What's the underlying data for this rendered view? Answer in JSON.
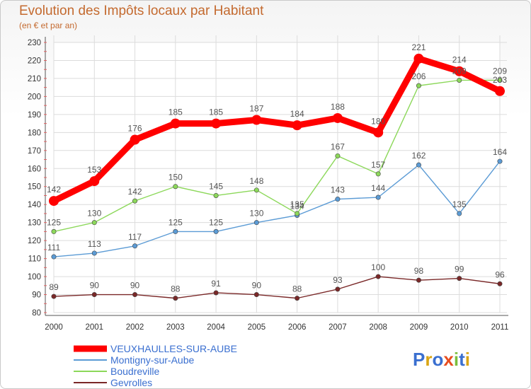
{
  "header": {
    "title": "Evolution des Impôts locaux par Habitant",
    "subtitle": "(en € et par an)"
  },
  "brand": {
    "logo_text": "Proxiti"
  },
  "chart_data": {
    "type": "line",
    "x": [
      "2000",
      "2001",
      "2002",
      "2003",
      "2004",
      "2005",
      "2006",
      "2007",
      "2008",
      "2009",
      "2010",
      "2011"
    ],
    "ylim": [
      80,
      230
    ],
    "yticks": [
      80,
      90,
      100,
      110,
      120,
      130,
      140,
      150,
      160,
      170,
      180,
      190,
      200,
      210,
      220,
      230
    ],
    "grid": true,
    "legend_position": "bottom-left",
    "series": [
      {
        "name": "VEUXHAULLES-SUR-AUBE",
        "color": "#ff0000",
        "values": [
          142,
          153,
          176,
          185,
          185,
          187,
          184,
          188,
          180,
          221,
          214,
          203
        ]
      },
      {
        "name": "Montigny-sur-Aube",
        "color": "#5b9bd5",
        "values": [
          111,
          113,
          117,
          125,
          125,
          130,
          134,
          143,
          144,
          162,
          135,
          164
        ]
      },
      {
        "name": "Boudreville",
        "color": "#8cd85a",
        "values": [
          125,
          130,
          142,
          150,
          145,
          148,
          135,
          167,
          157,
          206,
          209,
          209
        ]
      },
      {
        "name": "Gevrolles",
        "color": "#7a2828",
        "values": [
          89,
          90,
          90,
          88,
          91,
          90,
          88,
          93,
          100,
          98,
          99,
          96
        ]
      }
    ]
  }
}
